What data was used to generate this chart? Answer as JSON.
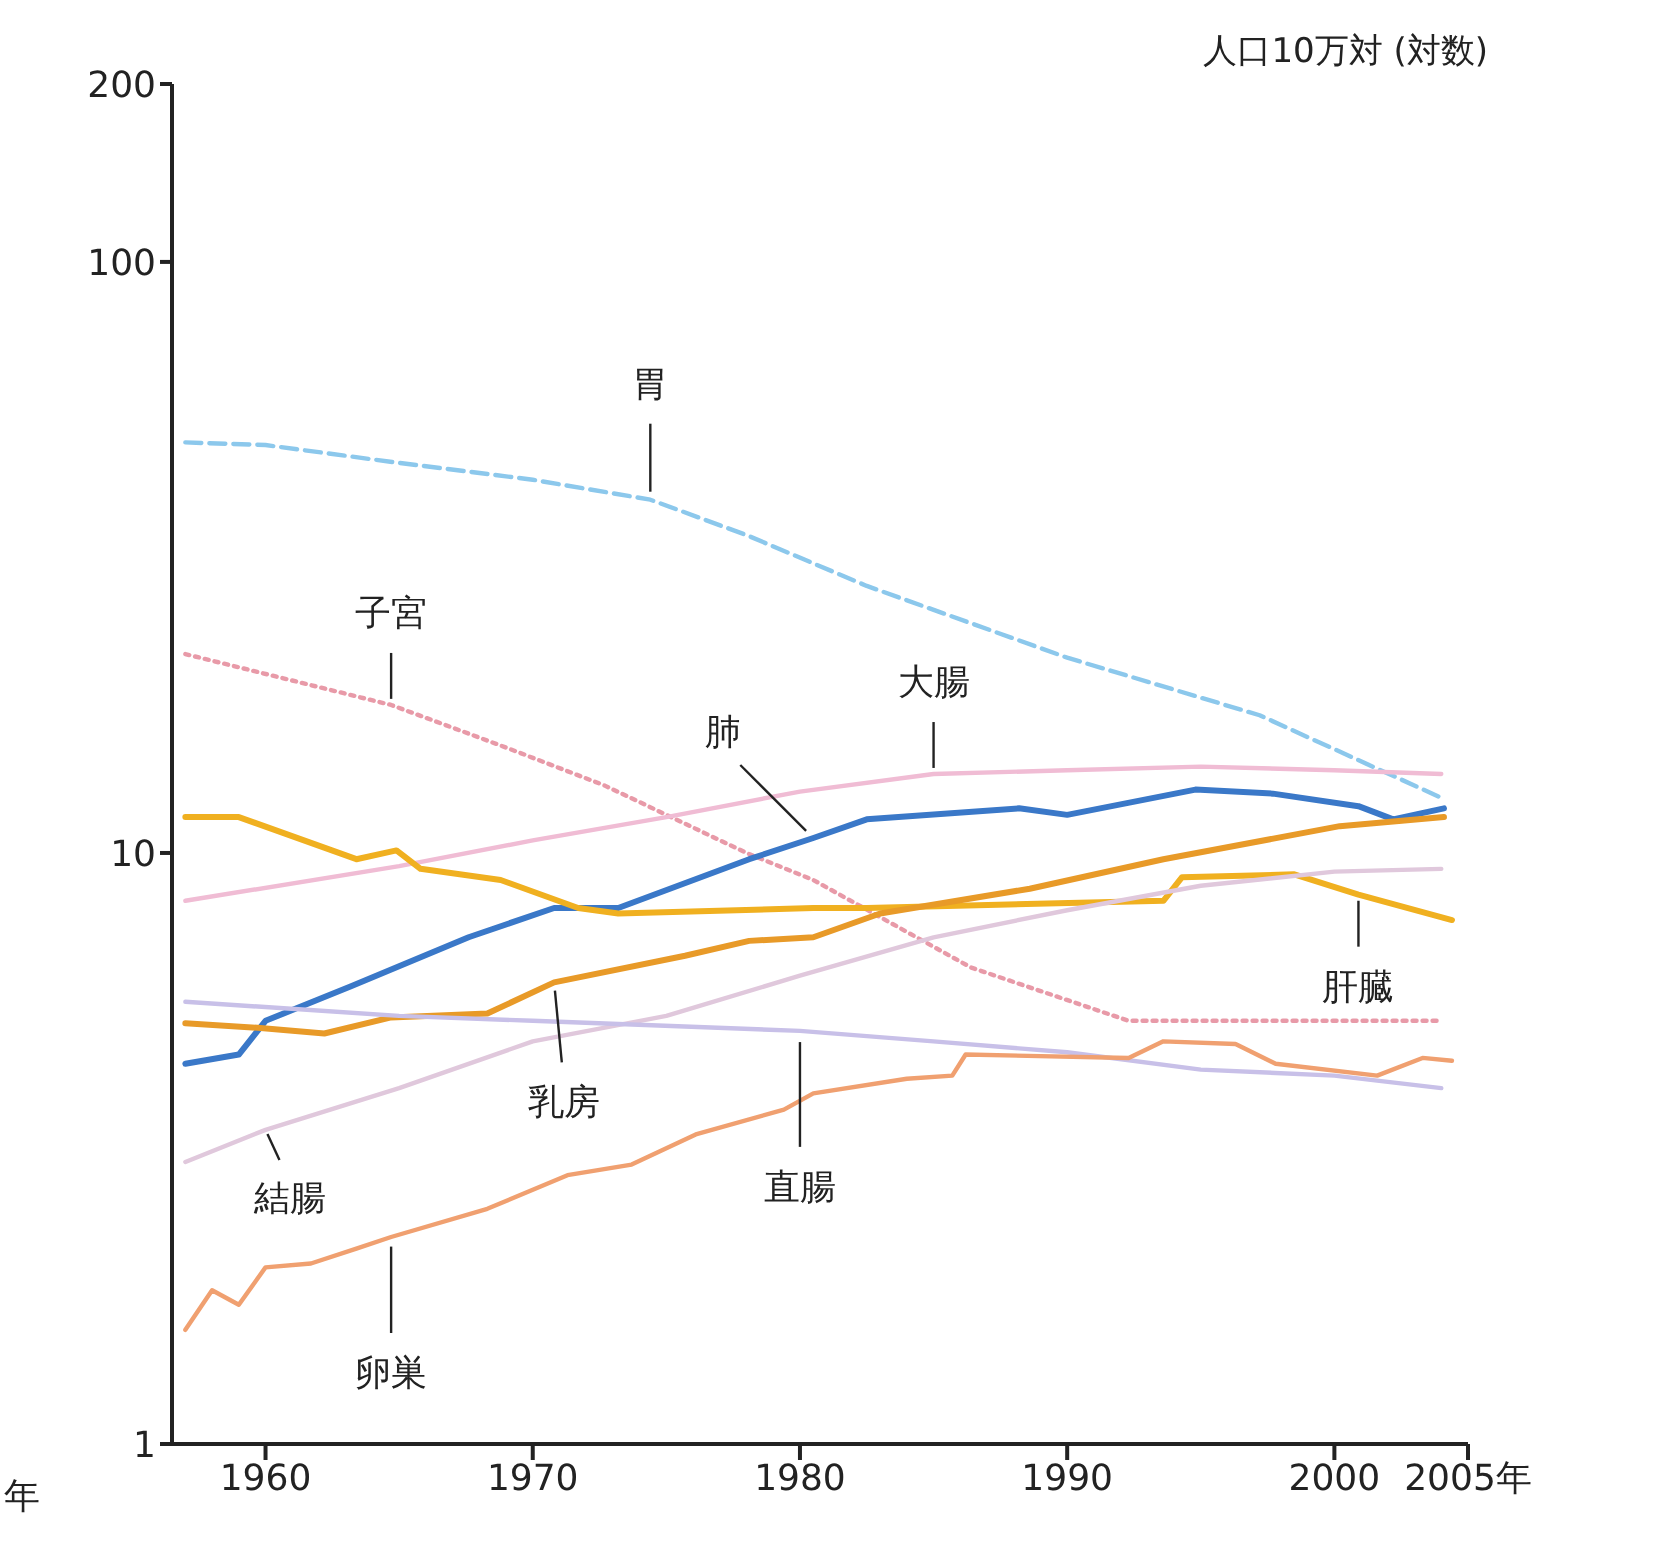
{
  "chart_data": {
    "type": "line",
    "ylabel": "人口10万対 (対数)",
    "log": "y",
    "xlim": [
      1956.5,
      2005
    ],
    "xticks": [
      1960,
      1970,
      1980,
      1990,
      2000,
      {
        "value": 2005,
        "label": "2005年"
      }
    ],
    "ylim": [
      1,
      200
    ],
    "yticks": [
      1,
      10,
      100,
      200
    ],
    "marker": "none",
    "annotations": [
      "年"
    ],
    "series": [
      {
        "name": "胃",
        "color": "#8cc8ec",
        "line_style": "dashed",
        "x": [
          1957,
          1960,
          1965,
          1970,
          1974.4,
          1978,
          1982.5,
          1990,
          1997.2,
          2004
        ],
        "values": [
          49.5,
          49,
          45.7,
          42.8,
          39.6,
          34.5,
          28.3,
          21.4,
          17.1,
          12.4
        ]
      },
      {
        "name": "子宮",
        "color": "#e89aa8",
        "line_style": "dotted",
        "x": [
          1957,
          1964.7,
          1968.8,
          1972.7,
          1978,
          1980.5,
          1986.4,
          1992.3,
          2004
        ],
        "values": [
          21.7,
          17.8,
          15.2,
          13,
          10,
          9,
          6.4,
          5.2,
          5.2
        ]
      },
      {
        "name": "大腸",
        "color": "#f0bcd4",
        "line_style": "solid",
        "x": [
          1957,
          1965,
          1970,
          1975,
          1980,
          1985,
          1990,
          1995,
          2000,
          2004
        ],
        "values": [
          8.3,
          9.5,
          10.5,
          11.5,
          12.7,
          13.6,
          13.8,
          14,
          13.8,
          13.6
        ]
      },
      {
        "name": "肺",
        "color": "#3a78c8",
        "line_style": "solid",
        "x": [
          1957,
          1959,
          1960,
          1963.2,
          1967.6,
          1970.8,
          1973.2,
          1978.1,
          1980.5,
          1982.5,
          1988.2,
          1990,
          1994.8,
          1997.7,
          2000.9,
          2002.2,
          2004.1
        ],
        "values": [
          4.4,
          4.56,
          5.2,
          5.95,
          7.2,
          8.07,
          8.07,
          9.76,
          10.6,
          11.4,
          11.9,
          11.6,
          12.8,
          12.6,
          12,
          11.4,
          11.9
        ]
      },
      {
        "name": "肝臓",
        "color": "#f0b020",
        "line_style": "solid",
        "x": [
          1957,
          1959,
          1963.4,
          1964.9,
          1965.8,
          1968.8,
          1971.7,
          1973.2,
          1980.5,
          1982.5,
          1993.6,
          1994.3,
          1998.5,
          2000.9,
          2004.4
        ],
        "values": [
          11.5,
          11.5,
          9.76,
          10.1,
          9.4,
          9,
          8.07,
          7.9,
          8.07,
          8.07,
          8.3,
          9.1,
          9.2,
          8.5,
          7.7
        ]
      },
      {
        "name": "乳房",
        "color": "#e89a28",
        "line_style": "solid",
        "x": [
          1957,
          1959.7,
          1962.2,
          1964.7,
          1968.3,
          1970.8,
          1975.7,
          1978.1,
          1980.5,
          1983,
          1988.6,
          1993.6,
          2000.2,
          2004.1
        ],
        "values": [
          5.15,
          5.06,
          4.95,
          5.27,
          5.35,
          6.04,
          6.7,
          7.1,
          7.2,
          7.9,
          8.7,
          9.76,
          11.1,
          11.5
        ]
      },
      {
        "name": "結腸",
        "color": "#e0c8dc",
        "line_style": "solid",
        "x": [
          1957,
          1960,
          1965,
          1970,
          1975,
          1980,
          1985,
          1990,
          1995,
          2000,
          2004
        ],
        "values": [
          3,
          3.4,
          4,
          4.8,
          5.3,
          6.2,
          7.2,
          8,
          8.8,
          9.3,
          9.4
        ]
      },
      {
        "name": "直腸",
        "color": "#c8c0e8",
        "line_style": "solid",
        "x": [
          1957,
          1965,
          1970,
          1980,
          1985,
          1990,
          1995,
          2000,
          2004
        ],
        "values": [
          5.6,
          5.3,
          5.2,
          5,
          4.8,
          4.6,
          4.3,
          4.2,
          4
        ]
      },
      {
        "name": "卵巣",
        "color": "#f0a070",
        "line_style": "solid",
        "x": [
          1957,
          1958,
          1959,
          1960,
          1961.7,
          1963.4,
          1964.7,
          1968.3,
          1971.3,
          1973.7,
          1976.1,
          1979.4,
          1980.5,
          1984,
          1985.7,
          1986.2,
          1992.3,
          1993.6,
          1996.3,
          1997.8,
          2001.6,
          2003.3,
          2004.4
        ],
        "values": [
          1.56,
          1.82,
          1.72,
          1.99,
          2.02,
          2.14,
          2.24,
          2.5,
          2.85,
          2.97,
          3.34,
          3.68,
          3.92,
          4.15,
          4.2,
          4.56,
          4.5,
          4.8,
          4.75,
          4.4,
          4.2,
          4.5,
          4.45
        ]
      }
    ]
  }
}
